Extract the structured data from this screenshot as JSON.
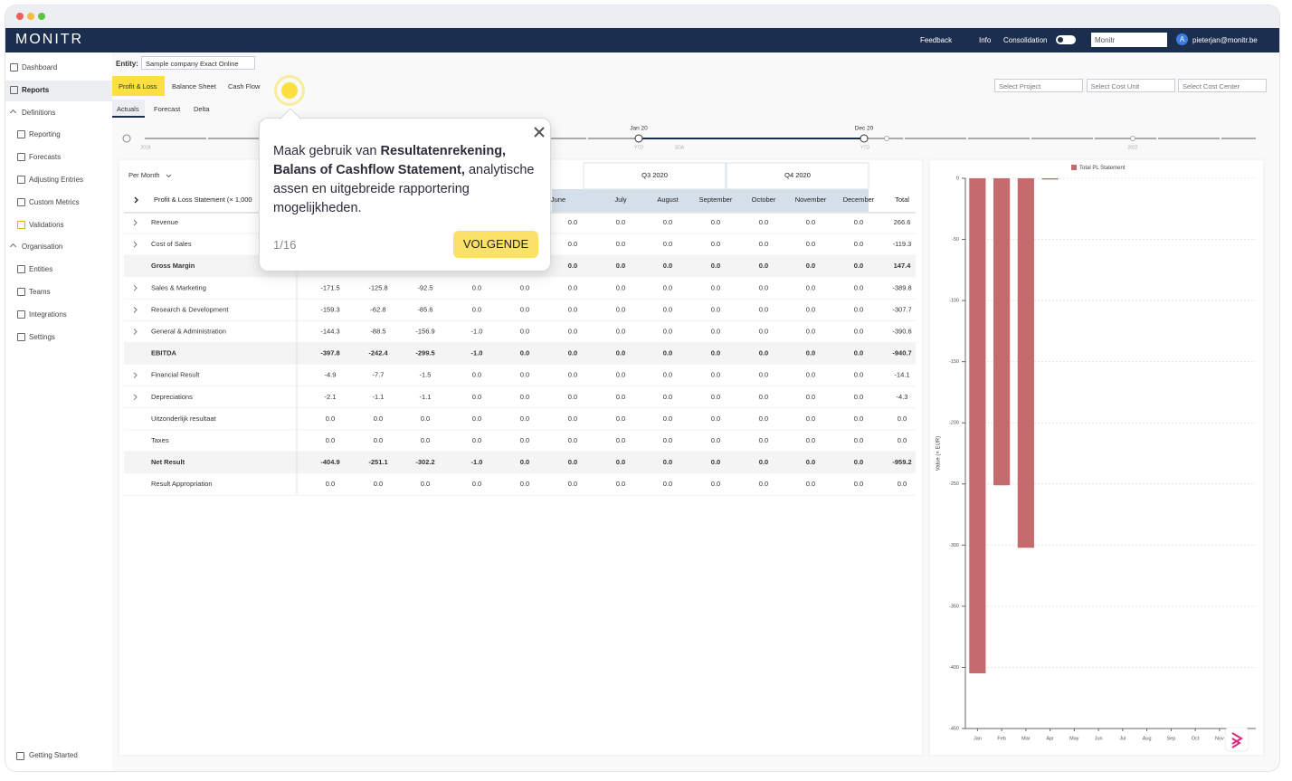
{
  "nav": {
    "logo": "MONITR",
    "feedback": "Feedback",
    "info": "Info",
    "consolidation": "Consolidation",
    "workspace": "Monitr",
    "avatar": "A",
    "user": "pieterjan@monitr.be"
  },
  "sidebar": {
    "items": [
      "Dashboard",
      "Reports",
      "Definitions",
      "Reporting",
      "Forecasts",
      "Adjusting Entries",
      "Custom Metrics",
      "Validations",
      "Organisation",
      "Entities",
      "Teams",
      "Integrations",
      "Settings"
    ],
    "footer": "Getting Started"
  },
  "filters": {
    "entity_label": "Entity:",
    "entity": "Sample company Exact Online",
    "tabs": [
      "Profit & Loss",
      "Balance Sheet",
      "Cash Flow"
    ],
    "subtabs": [
      "Actuals",
      "Forecast",
      "Delta"
    ],
    "selects": [
      "Select Project",
      "Select Cost Unit",
      "Select Cost Center"
    ]
  },
  "timeline": {
    "markers": [
      "Jan 20",
      "Dec 20"
    ],
    "scale": [
      "2018",
      "YTD",
      "SDA",
      "YTD",
      "2022"
    ]
  },
  "table": {
    "period": "Per Month",
    "title": "Profit & Loss Statement (× 1,000",
    "quarters": [
      "Q3 2020",
      "Q4 2020"
    ],
    "columns": [
      null,
      null,
      null,
      null,
      null,
      "June",
      "July",
      "August",
      "September",
      "October",
      "November",
      "December",
      "Total"
    ],
    "rows": [
      {
        "label": "Revenue",
        "values": [
          null,
          null,
          null,
          null,
          null,
          "0.0",
          "0.0",
          "0.0",
          "0.0",
          "0.0",
          "0.0",
          "0.0",
          "266.6"
        ]
      },
      {
        "label": "Cost of Sales",
        "values": [
          null,
          null,
          null,
          null,
          null,
          "0.0",
          "0.0",
          "0.0",
          "0.0",
          "0.0",
          "0.0",
          "0.0",
          "-119.3"
        ]
      },
      {
        "label": "Gross Margin",
        "values": [
          null,
          null,
          null,
          null,
          null,
          "0.0",
          "0.0",
          "0.0",
          "0.0",
          "0.0",
          "0.0",
          "0.0",
          "147.4"
        ]
      },
      {
        "label": "Sales & Marketing",
        "values": [
          "-171.5",
          "-125.8",
          "-92.5",
          "0.0",
          "0.0",
          "0.0",
          "0.0",
          "0.0",
          "0.0",
          "0.0",
          "0.0",
          "0.0",
          "-389.8"
        ]
      },
      {
        "label": "Research & Development",
        "values": [
          "-159.3",
          "-62.8",
          "-85.6",
          "0.0",
          "0.0",
          "0.0",
          "0.0",
          "0.0",
          "0.0",
          "0.0",
          "0.0",
          "0.0",
          "-307.7"
        ]
      },
      {
        "label": "General & Administration",
        "values": [
          "-144.3",
          "-88.5",
          "-156.9",
          "-1.0",
          "0.0",
          "0.0",
          "0.0",
          "0.0",
          "0.0",
          "0.0",
          "0.0",
          "0.0",
          "-390.6"
        ]
      },
      {
        "label": "EBITDA",
        "values": [
          "-397.8",
          "-242.4",
          "-299.5",
          "-1.0",
          "0.0",
          "0.0",
          "0.0",
          "0.0",
          "0.0",
          "0.0",
          "0.0",
          "0.0",
          "-940.7"
        ]
      },
      {
        "label": "Financial Result",
        "values": [
          "-4.9",
          "-7.7",
          "-1.5",
          "0.0",
          "0.0",
          "0.0",
          "0.0",
          "0.0",
          "0.0",
          "0.0",
          "0.0",
          "0.0",
          "-14.1"
        ]
      },
      {
        "label": "Depreciations",
        "values": [
          "-2.1",
          "-1.1",
          "-1.1",
          "0.0",
          "0.0",
          "0.0",
          "0.0",
          "0.0",
          "0.0",
          "0.0",
          "0.0",
          "0.0",
          "-4.3"
        ]
      },
      {
        "label": "Uitzonderlijk resultaat",
        "values": [
          "0.0",
          "0.0",
          "0.0",
          "0.0",
          "0.0",
          "0.0",
          "0.0",
          "0.0",
          "0.0",
          "0.0",
          "0.0",
          "0.0",
          "0.0"
        ]
      },
      {
        "label": "Taxes",
        "values": [
          "0.0",
          "0.0",
          "0.0",
          "0.0",
          "0.0",
          "0.0",
          "0.0",
          "0.0",
          "0.0",
          "0.0",
          "0.0",
          "0.0",
          "0.0"
        ]
      },
      {
        "label": "Net Result",
        "values": [
          "-404.9",
          "-251.1",
          "-302.2",
          "-1.0",
          "0.0",
          "0.0",
          "0.0",
          "0.0",
          "0.0",
          "0.0",
          "0.0",
          "0.0",
          "-959.2"
        ]
      },
      {
        "label": "Result Appropriation",
        "values": [
          "0.0",
          "0.0",
          "0.0",
          "0.0",
          "0.0",
          "0.0",
          "0.0",
          "0.0",
          "0.0",
          "0.0",
          "0.0",
          "0.0",
          "0.0"
        ]
      }
    ]
  },
  "tour": {
    "text": [
      "Maak gebruik van",
      "Resultatenrekening, Balans of Cashflow Statement,",
      "analytische assen en uitgebreide rapportering mogelijkheden."
    ],
    "step": "1/16",
    "button": "VOLGENDE"
  },
  "chart_data": {
    "type": "bar",
    "y_label": "Value (× EUR)",
    "categories": [
      "Jan",
      "Feb",
      "Mar",
      "Apr",
      "May",
      "Jun",
      "Jul",
      "Aug",
      "Sep",
      "Oct",
      "Nov",
      "Dec"
    ],
    "series": [
      {
        "name": "Total PL Statement",
        "color": "#c56b6e",
        "values": [
          -404.9,
          -251.1,
          -302.2,
          -1.0,
          0,
          0,
          0,
          0,
          0,
          0,
          0,
          0
        ]
      }
    ],
    "ylim": [
      -450,
      0
    ],
    "yticks": [
      0,
      -50,
      -100,
      -150,
      -200,
      -250,
      -300,
      -350,
      -400,
      -450
    ],
    "grid": true
  }
}
